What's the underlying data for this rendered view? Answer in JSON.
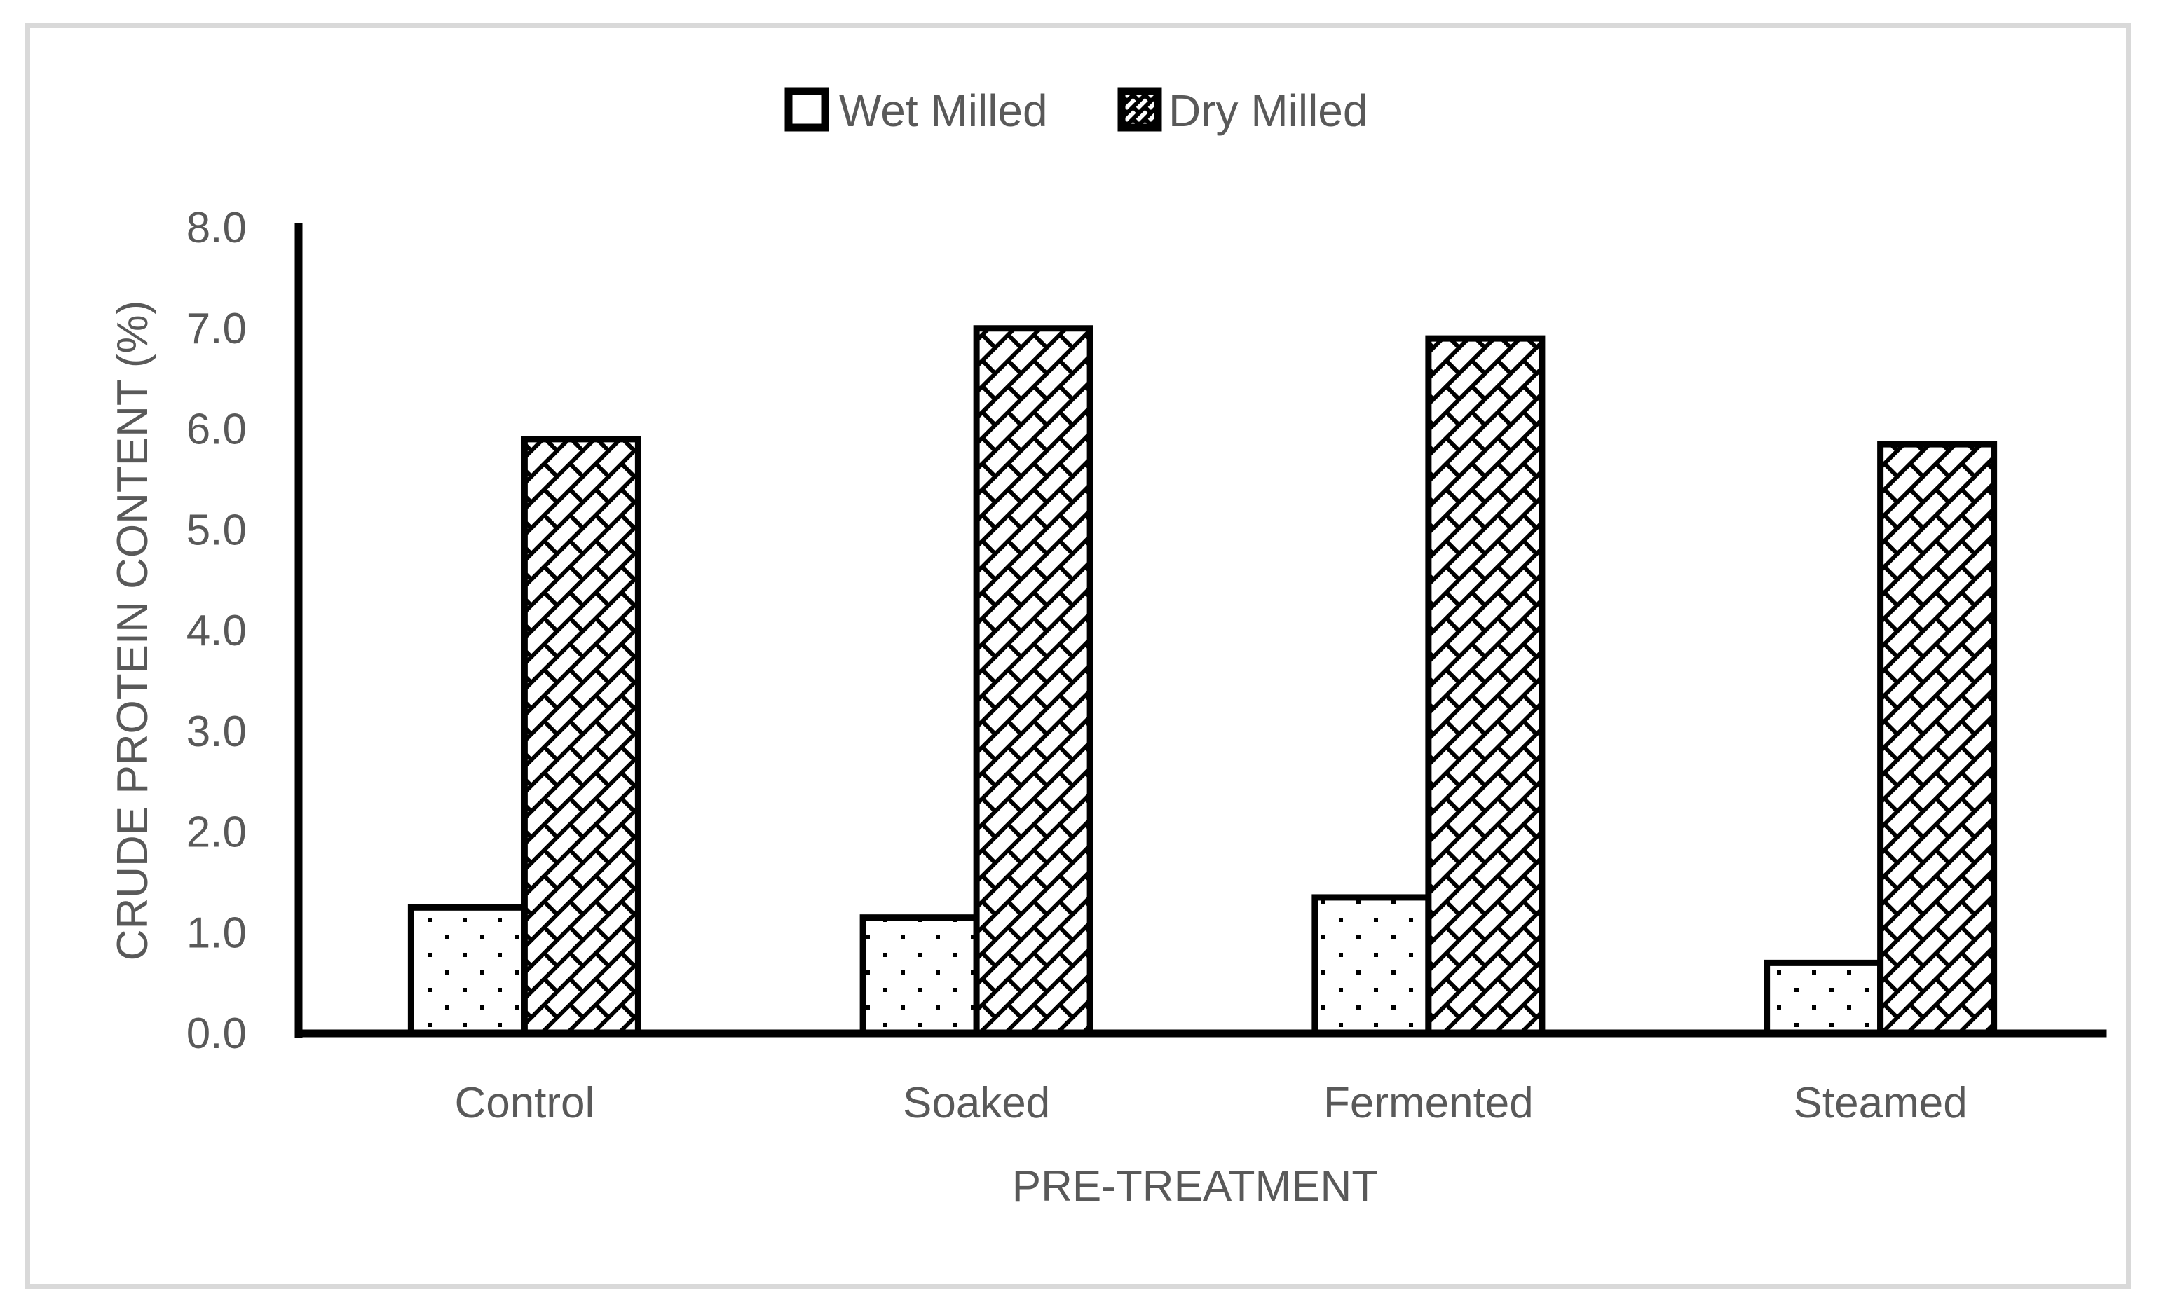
{
  "chart_data": {
    "type": "bar",
    "title": "",
    "categories": [
      "Control",
      "Soaked",
      "Fermented",
      "Steamed"
    ],
    "series": [
      {
        "name": "Wet Milled",
        "pattern": "dots",
        "values": [
          1.25,
          1.15,
          1.35,
          0.7
        ]
      },
      {
        "name": "Dry Milled",
        "pattern": "diagonal-brick",
        "values": [
          5.9,
          7.0,
          6.9,
          5.85
        ]
      }
    ],
    "xlabel": "PRE-TREATMENT",
    "ylabel": "CRUDE PROTEIN CONTENT (%)",
    "ylim": [
      0,
      8
    ],
    "ytick_step": 1.0,
    "ytick_labels": [
      "0.0",
      "1.0",
      "2.0",
      "3.0",
      "4.0",
      "5.0",
      "6.0",
      "7.0",
      "8.0"
    ],
    "grid": false,
    "legend_position": "top-center"
  },
  "legend": {
    "items": [
      {
        "label": "Wet Milled",
        "marker": "dotted-square-icon"
      },
      {
        "label": "Dry Milled",
        "marker": "brick-square-icon"
      }
    ]
  },
  "colors": {
    "bar_outline": "#000000",
    "bar_fill": "#ffffff",
    "pattern_ink": "#000000",
    "axis": "#000000",
    "text": "#595959",
    "frame_border": "#d9d9d9",
    "background": "#ffffff"
  }
}
